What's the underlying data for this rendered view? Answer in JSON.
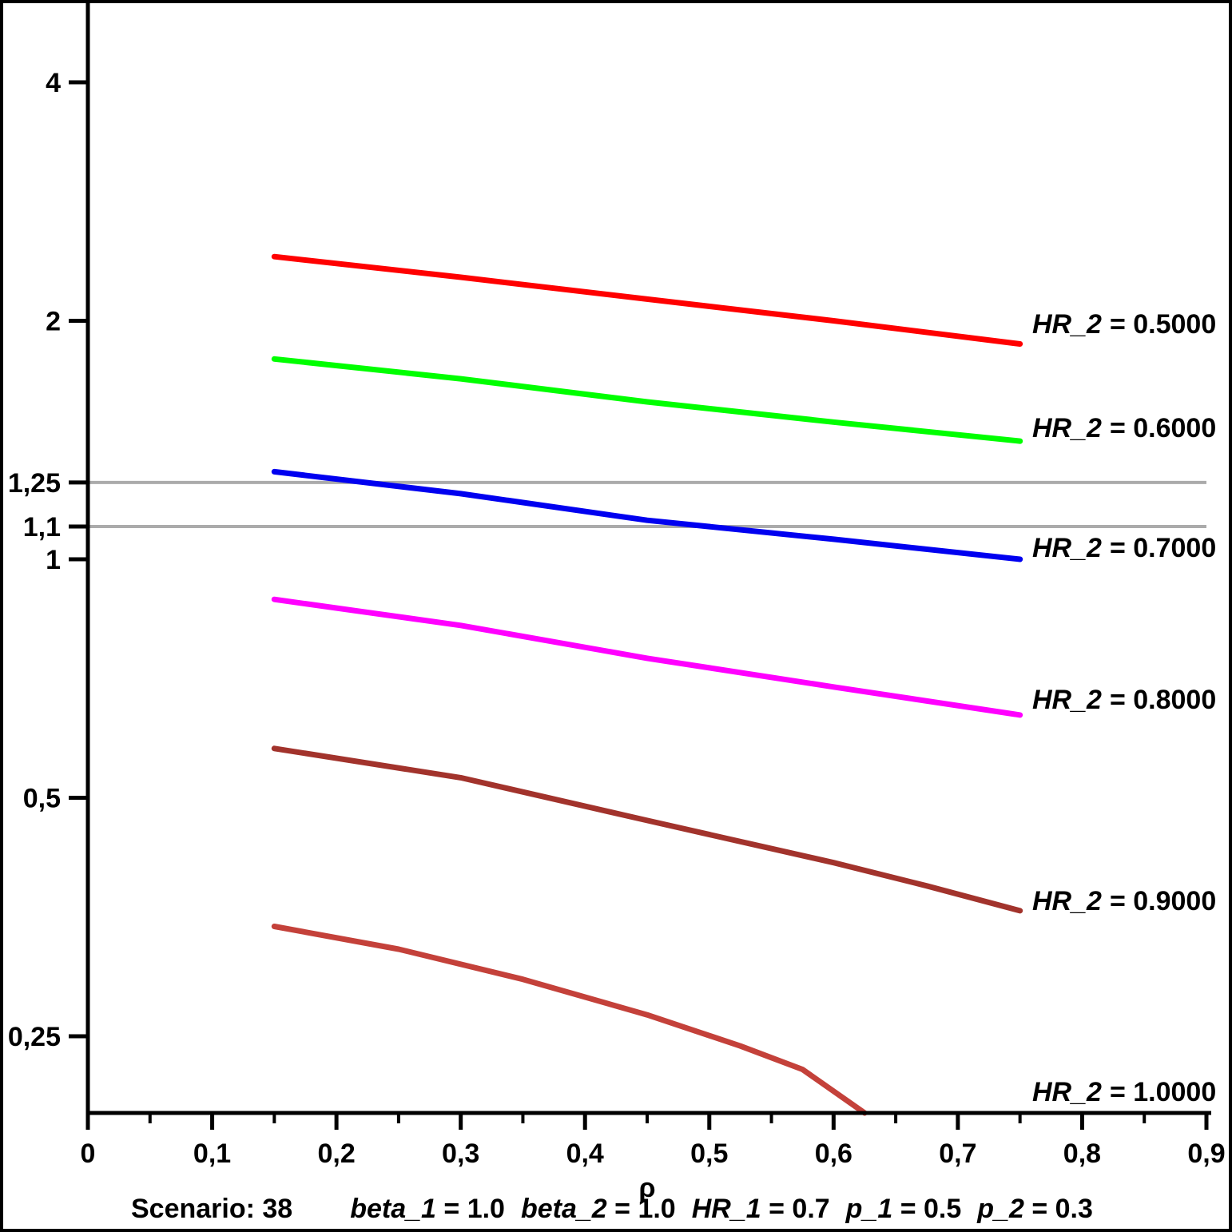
{
  "chart_data": {
    "type": "line",
    "title": "",
    "xlabel": "ρ",
    "ylabel": "",
    "grid": "reference-lines-only",
    "x_axis": {
      "min": 0,
      "max": 0.9,
      "major_ticks": [
        {
          "value": 0.0,
          "label": "0"
        },
        {
          "value": 0.1,
          "label": "0,1"
        },
        {
          "value": 0.2,
          "label": "0,2"
        },
        {
          "value": 0.3,
          "label": "0,3"
        },
        {
          "value": 0.4,
          "label": "0,4"
        },
        {
          "value": 0.5,
          "label": "0,5"
        },
        {
          "value": 0.6,
          "label": "0,6"
        },
        {
          "value": 0.7,
          "label": "0,7"
        },
        {
          "value": 0.8,
          "label": "0,8"
        },
        {
          "value": 0.9,
          "label": "0,9"
        }
      ],
      "minor_tick_values": [
        0.05,
        0.15,
        0.25,
        0.35,
        0.45,
        0.55,
        0.65,
        0.75,
        0.85
      ]
    },
    "y_axis": {
      "scale": "log",
      "min": 0.2,
      "max": 4.85,
      "ticks": [
        {
          "value": 4,
          "label": "4"
        },
        {
          "value": 2,
          "label": "2"
        },
        {
          "value": 1.25,
          "label": "1,25"
        },
        {
          "value": 1.1,
          "label": "1,1"
        },
        {
          "value": 1,
          "label": "1"
        },
        {
          "value": 0.5,
          "label": "0,5"
        },
        {
          "value": 0.25,
          "label": "0,25"
        }
      ]
    },
    "reference_lines": [
      {
        "value": 1.25,
        "color": "#ababab"
      },
      {
        "value": 1.1,
        "color": "#ababab"
      }
    ],
    "series": [
      {
        "hr2": 0.5,
        "color": "#ff0000",
        "label_italic": "HR_2",
        "label_rest": "= 0.5000",
        "label_value": 1.985,
        "points": [
          [
            0.15,
            2.41
          ],
          [
            0.3,
            2.27
          ],
          [
            0.45,
            2.13
          ],
          [
            0.6,
            2.0
          ],
          [
            0.75,
            1.87
          ]
        ]
      },
      {
        "hr2": 0.6,
        "color": "#00ff00",
        "label_italic": "HR_2",
        "label_rest": "= 0.6000",
        "label_value": 1.467,
        "points": [
          [
            0.15,
            1.79
          ],
          [
            0.3,
            1.69
          ],
          [
            0.45,
            1.58
          ],
          [
            0.6,
            1.49
          ],
          [
            0.75,
            1.41
          ]
        ]
      },
      {
        "hr2": 0.7,
        "color": "#0000f0",
        "label_italic": "HR_2",
        "label_rest": "= 0.7000",
        "label_value": 1.035,
        "points": [
          [
            0.15,
            1.29
          ],
          [
            0.3,
            1.21
          ],
          [
            0.45,
            1.12
          ],
          [
            0.6,
            1.06
          ],
          [
            0.75,
            1.0
          ]
        ]
      },
      {
        "hr2": 0.8,
        "color": "#ff00ff",
        "label_italic": "HR_2",
        "label_rest": "= 0.8000",
        "label_value": 0.666,
        "points": [
          [
            0.15,
            0.89
          ],
          [
            0.3,
            0.825
          ],
          [
            0.45,
            0.75
          ],
          [
            0.6,
            0.69
          ],
          [
            0.75,
            0.636
          ]
        ]
      },
      {
        "hr2": 0.9,
        "color": "#a2332c",
        "label_italic": "HR_2",
        "label_rest": "= 0.9000",
        "label_value": 0.371,
        "points": [
          [
            0.15,
            0.577
          ],
          [
            0.3,
            0.53
          ],
          [
            0.45,
            0.468
          ],
          [
            0.6,
            0.414
          ],
          [
            0.675,
            0.387
          ],
          [
            0.75,
            0.36
          ]
        ]
      },
      {
        "hr2": 1.0,
        "color": "#c4413a",
        "label_italic": "HR_2",
        "label_rest": "= 1.0000",
        "label_value": 0.213,
        "points": [
          [
            0.15,
            0.344
          ],
          [
            0.25,
            0.322
          ],
          [
            0.35,
            0.295
          ],
          [
            0.45,
            0.266
          ],
          [
            0.525,
            0.243
          ],
          [
            0.575,
            0.227
          ],
          [
            0.625,
            0.2
          ]
        ]
      }
    ]
  },
  "footer": {
    "scenario": "Scenario: 38",
    "params": [
      {
        "name": "beta_1",
        "eq": " = 1.0"
      },
      {
        "name": "beta_2",
        "eq": " = 1.0"
      },
      {
        "name": "HR_1",
        "eq": " = 0.7"
      },
      {
        "name": "p_1",
        "eq": " = 0.5"
      },
      {
        "name": "p_2",
        "eq": " = 0.3"
      }
    ]
  }
}
